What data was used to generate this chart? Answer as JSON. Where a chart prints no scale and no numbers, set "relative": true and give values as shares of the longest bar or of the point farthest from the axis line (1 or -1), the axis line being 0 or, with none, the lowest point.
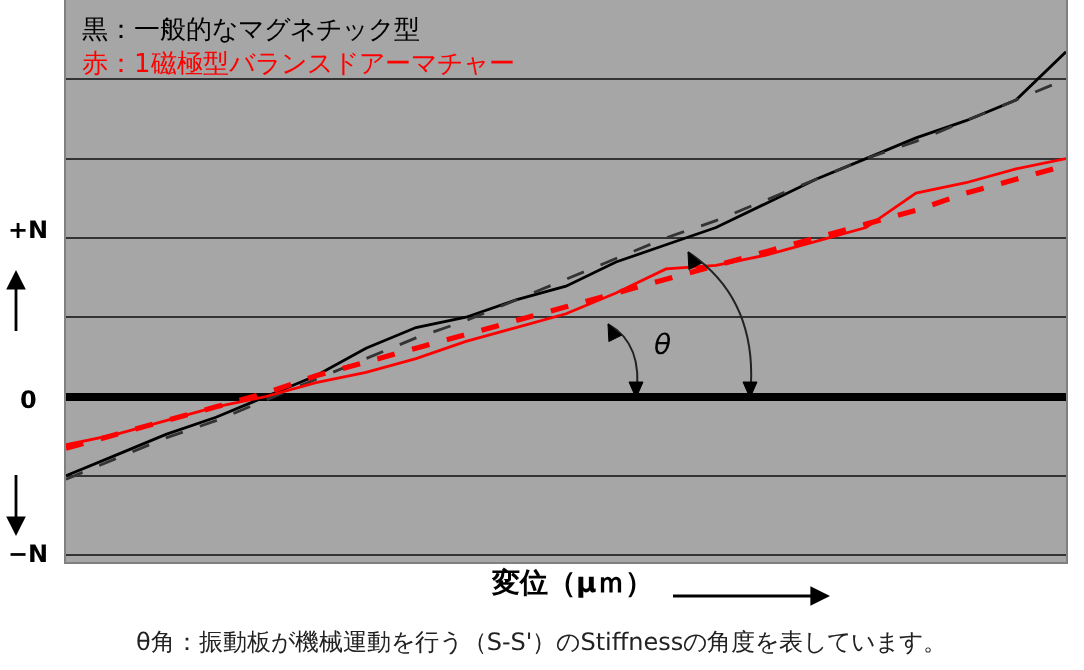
{
  "chart_data": {
    "type": "line",
    "relative": true,
    "xlabel": "変位（μｍ）",
    "categories": [
      null,
      null,
      null,
      null,
      null,
      null,
      null,
      null,
      null,
      null,
      null,
      null,
      null,
      null,
      null,
      null,
      null,
      null,
      null,
      null,
      null
    ],
    "series": [
      {
        "color": "#000000",
        "line_style": "solid",
        "values": [
          -0.23,
          -0.17,
          -0.11,
          -0.06,
          0,
          0.06,
          0.14,
          0.2,
          0.23,
          0.28,
          0.32,
          0.39,
          0.44,
          0.49,
          0.56,
          0.63,
          0.69,
          0.75,
          0.8,
          0.86,
          1.0
        ]
      },
      {
        "color": "#333333",
        "line_style": "dashed",
        "values": [
          -0.24,
          -0.18,
          -0.12,
          -0.07,
          -0.01,
          0.05,
          0.11,
          0.17,
          0.22,
          0.28,
          0.34,
          0.4,
          0.46,
          0.51,
          0.57,
          0.63,
          0.69,
          0.74,
          0.8,
          0.86,
          0.92
        ]
      },
      {
        "color": "#ff0000",
        "line_style": "solid",
        "values": [
          -0.14,
          -0.11,
          -0.07,
          -0.03,
          0,
          0.04,
          0.07,
          0.11,
          0.16,
          0.2,
          0.24,
          0.3,
          0.37,
          0.38,
          0.41,
          0.45,
          0.49,
          0.59,
          0.62,
          0.66,
          0.69
        ]
      },
      {
        "color": "#ff0000",
        "line_style": "dashed",
        "values": [
          -0.15,
          -0.11,
          -0.07,
          -0.03,
          0.01,
          0.06,
          0.1,
          0.14,
          0.18,
          0.22,
          0.26,
          0.3,
          0.34,
          0.38,
          0.42,
          0.46,
          0.5,
          0.54,
          0.59,
          0.63,
          0.67
        ]
      }
    ],
    "annotations": [
      "黒：一般的なマグネチック型",
      "赤：1磁極型バランスドアーマチャー",
      "+N",
      "0",
      "−N",
      "θ",
      "θ角：振動板が機械運動を行う（S-S'）のStiffnessの角度を表しています。"
    ],
    "grid": "y",
    "marker": "none"
  }
}
